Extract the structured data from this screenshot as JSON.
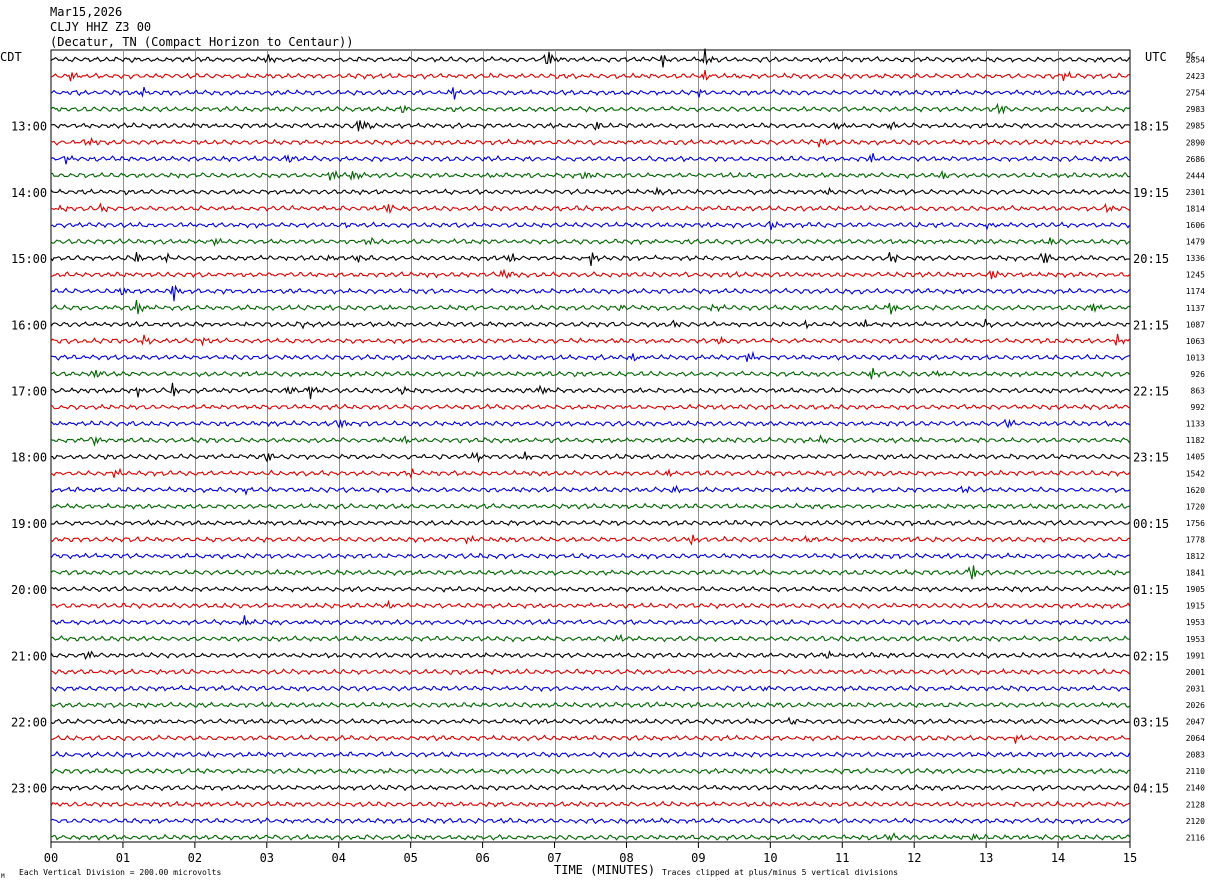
{
  "header": {
    "date": "Mar15,2026",
    "station": "CLJY HHZ Z3 00",
    "location": "(Decatur, TN (Compact Horizon to Centaur))"
  },
  "axis_labels": {
    "left_tz": "CDT",
    "right_tz": "UTC",
    "dc_label": "DC",
    "x_title": "TIME (MINUTES)"
  },
  "footer": {
    "scale_note": "Each Vertical Division =  200.00 microvolts",
    "clip_note": "Traces clipped at plus/minus 5 vertical divisions",
    "corner_mark": "M"
  },
  "colors": {
    "trace_cycle": [
      "#000000",
      "#dd0000",
      "#0000dd",
      "#006600"
    ],
    "grid": "#909090",
    "frame": "#000000"
  },
  "chart_data": {
    "type": "line",
    "title": "CLJY HHZ Z3 00",
    "xlabel": "TIME (MINUTES)",
    "ylabel": "",
    "x_range": [
      0,
      15
    ],
    "x_ticks": [
      "00",
      "01",
      "02",
      "03",
      "04",
      "05",
      "06",
      "07",
      "08",
      "09",
      "10",
      "11",
      "12",
      "13",
      "14",
      "15"
    ],
    "row_count": 48,
    "row_minutes": 15,
    "left_time_labels": [
      "13:00",
      "14:00",
      "15:00",
      "16:00",
      "17:00",
      "18:00",
      "19:00",
      "20:00",
      "21:00",
      "22:00",
      "23:00"
    ],
    "right_time_labels": [
      "18:15",
      "19:15",
      "20:15",
      "21:15",
      "22:15",
      "23:15",
      "00:15",
      "01:15",
      "02:15",
      "03:15",
      "04:15"
    ],
    "label_row_indices": [
      4,
      8,
      12,
      16,
      20,
      24,
      28,
      32,
      36,
      40,
      44
    ],
    "dc_offsets": [
      "2854",
      "2423",
      "2754",
      "2983",
      "2985",
      "2890",
      "2686",
      "2444",
      "2301",
      "1814",
      "1606",
      "1479",
      "1336",
      "1245",
      "1174",
      "1137",
      "1087",
      "1063",
      "1013",
      "926",
      "863",
      "992",
      "1133",
      "1182",
      "1405",
      "1542",
      "1620",
      "1720",
      "1756",
      "1778",
      "1812",
      "1841",
      "1905",
      "1915",
      "1953",
      "1953",
      "1991",
      "2001",
      "2031",
      "2026",
      "2047",
      "2064",
      "2083",
      "2110",
      "2140",
      "2128",
      "2120",
      "2116"
    ],
    "events": [
      {
        "row": 0,
        "minute": 3.0,
        "amp": 0.6
      },
      {
        "row": 0,
        "minute": 6.9,
        "amp": 1.2
      },
      {
        "row": 0,
        "minute": 8.5,
        "amp": 0.9
      },
      {
        "row": 0,
        "minute": 9.1,
        "amp": 1.0
      },
      {
        "row": 1,
        "minute": 0.3,
        "amp": 0.6
      },
      {
        "row": 1,
        "minute": 9.1,
        "amp": 0.7
      },
      {
        "row": 1,
        "minute": 14.1,
        "amp": 0.5
      },
      {
        "row": 2,
        "minute": 1.3,
        "amp": 0.5
      },
      {
        "row": 2,
        "minute": 5.6,
        "amp": 0.8
      },
      {
        "row": 2,
        "minute": 9.0,
        "amp": 0.4
      },
      {
        "row": 3,
        "minute": 4.9,
        "amp": 0.5
      },
      {
        "row": 3,
        "minute": 13.2,
        "amp": 0.6
      },
      {
        "row": 4,
        "minute": 4.3,
        "amp": 1.1
      },
      {
        "row": 4,
        "minute": 7.6,
        "amp": 0.5
      },
      {
        "row": 4,
        "minute": 10.9,
        "amp": 0.5
      },
      {
        "row": 4,
        "minute": 11.7,
        "amp": 0.5
      },
      {
        "row": 5,
        "minute": 0.5,
        "amp": 0.6
      },
      {
        "row": 5,
        "minute": 10.7,
        "amp": 0.6
      },
      {
        "row": 6,
        "minute": 0.2,
        "amp": 0.5
      },
      {
        "row": 6,
        "minute": 3.3,
        "amp": 0.5
      },
      {
        "row": 6,
        "minute": 11.4,
        "amp": 0.7
      },
      {
        "row": 7,
        "minute": 3.9,
        "amp": 0.8
      },
      {
        "row": 7,
        "minute": 4.2,
        "amp": 0.8
      },
      {
        "row": 7,
        "minute": 7.4,
        "amp": 0.5
      },
      {
        "row": 7,
        "minute": 12.4,
        "amp": 0.6
      },
      {
        "row": 8,
        "minute": 8.4,
        "amp": 0.4
      },
      {
        "row": 8,
        "minute": 10.8,
        "amp": 0.5
      },
      {
        "row": 9,
        "minute": 0.1,
        "amp": 0.5
      },
      {
        "row": 9,
        "minute": 0.7,
        "amp": 0.4
      },
      {
        "row": 9,
        "minute": 4.7,
        "amp": 0.6
      },
      {
        "row": 9,
        "minute": 14.7,
        "amp": 0.6
      },
      {
        "row": 10,
        "minute": 4.1,
        "amp": 0.4
      },
      {
        "row": 10,
        "minute": 10.0,
        "amp": 0.5
      },
      {
        "row": 10,
        "minute": 13.0,
        "amp": 0.4
      },
      {
        "row": 11,
        "minute": 2.3,
        "amp": 0.4
      },
      {
        "row": 11,
        "minute": 4.4,
        "amp": 0.4
      },
      {
        "row": 11,
        "minute": 13.9,
        "amp": 0.5
      },
      {
        "row": 12,
        "minute": 1.2,
        "amp": 0.8
      },
      {
        "row": 12,
        "minute": 1.6,
        "amp": 0.5
      },
      {
        "row": 12,
        "minute": 3.9,
        "amp": 0.5
      },
      {
        "row": 12,
        "minute": 4.3,
        "amp": 0.5
      },
      {
        "row": 12,
        "minute": 6.4,
        "amp": 0.7
      },
      {
        "row": 12,
        "minute": 7.5,
        "amp": 0.8
      },
      {
        "row": 12,
        "minute": 11.7,
        "amp": 0.7
      },
      {
        "row": 12,
        "minute": 13.8,
        "amp": 0.8
      },
      {
        "row": 13,
        "minute": 6.3,
        "amp": 0.6
      },
      {
        "row": 13,
        "minute": 13.1,
        "amp": 0.5
      },
      {
        "row": 14,
        "minute": 1.0,
        "amp": 0.6
      },
      {
        "row": 14,
        "minute": 1.7,
        "amp": 1.1
      },
      {
        "row": 15,
        "minute": 1.2,
        "amp": 1.0
      },
      {
        "row": 15,
        "minute": 7.9,
        "amp": 0.5
      },
      {
        "row": 15,
        "minute": 9.2,
        "amp": 0.5
      },
      {
        "row": 15,
        "minute": 11.7,
        "amp": 0.8
      },
      {
        "row": 15,
        "minute": 14.5,
        "amp": 0.6
      },
      {
        "row": 16,
        "minute": 3.5,
        "amp": 0.4
      },
      {
        "row": 16,
        "minute": 8.7,
        "amp": 0.4
      },
      {
        "row": 16,
        "minute": 10.5,
        "amp": 0.4
      },
      {
        "row": 16,
        "minute": 11.3,
        "amp": 0.5
      },
      {
        "row": 16,
        "minute": 13.0,
        "amp": 0.4
      },
      {
        "row": 17,
        "minute": 1.3,
        "amp": 0.5
      },
      {
        "row": 17,
        "minute": 2.1,
        "amp": 0.5
      },
      {
        "row": 17,
        "minute": 9.3,
        "amp": 0.5
      },
      {
        "row": 17,
        "minute": 14.8,
        "amp": 0.8
      },
      {
        "row": 18,
        "minute": 8.1,
        "amp": 0.5
      },
      {
        "row": 18,
        "minute": 9.7,
        "amp": 0.6
      },
      {
        "row": 19,
        "minute": 0.6,
        "amp": 0.5
      },
      {
        "row": 19,
        "minute": 11.4,
        "amp": 0.9
      },
      {
        "row": 19,
        "minute": 12.3,
        "amp": 0.5
      },
      {
        "row": 20,
        "minute": 1.2,
        "amp": 0.6
      },
      {
        "row": 20,
        "minute": 1.7,
        "amp": 0.8
      },
      {
        "row": 20,
        "minute": 3.3,
        "amp": 0.5
      },
      {
        "row": 20,
        "minute": 3.6,
        "amp": 1.0
      },
      {
        "row": 20,
        "minute": 4.9,
        "amp": 0.6
      },
      {
        "row": 20,
        "minute": 6.8,
        "amp": 0.6
      },
      {
        "row": 22,
        "minute": 4.0,
        "amp": 0.6
      },
      {
        "row": 22,
        "minute": 13.3,
        "amp": 0.6
      },
      {
        "row": 23,
        "minute": 0.6,
        "amp": 0.5
      },
      {
        "row": 23,
        "minute": 4.9,
        "amp": 0.6
      },
      {
        "row": 23,
        "minute": 10.7,
        "amp": 0.5
      },
      {
        "row": 24,
        "minute": 3.0,
        "amp": 0.6
      },
      {
        "row": 24,
        "minute": 5.9,
        "amp": 0.7
      },
      {
        "row": 24,
        "minute": 6.6,
        "amp": 0.4
      },
      {
        "row": 25,
        "minute": 0.9,
        "amp": 0.5
      },
      {
        "row": 25,
        "minute": 5.0,
        "amp": 0.5
      },
      {
        "row": 25,
        "minute": 8.6,
        "amp": 0.5
      },
      {
        "row": 26,
        "minute": 2.7,
        "amp": 0.4
      },
      {
        "row": 26,
        "minute": 8.7,
        "amp": 0.4
      },
      {
        "row": 26,
        "minute": 12.7,
        "amp": 0.5
      },
      {
        "row": 29,
        "minute": 5.8,
        "amp": 0.5
      },
      {
        "row": 29,
        "minute": 8.9,
        "amp": 0.5
      },
      {
        "row": 29,
        "minute": 10.5,
        "amp": 0.4
      },
      {
        "row": 31,
        "minute": 12.8,
        "amp": 1.2
      },
      {
        "row": 33,
        "minute": 4.7,
        "amp": 0.6
      },
      {
        "row": 34,
        "minute": 2.7,
        "amp": 0.8
      },
      {
        "row": 35,
        "minute": 7.9,
        "amp": 0.4
      },
      {
        "row": 36,
        "minute": 0.5,
        "amp": 0.5
      },
      {
        "row": 36,
        "minute": 10.8,
        "amp": 0.5
      },
      {
        "row": 38,
        "minute": 9.9,
        "amp": 0.4
      },
      {
        "row": 40,
        "minute": 10.3,
        "amp": 0.4
      },
      {
        "row": 41,
        "minute": 13.4,
        "amp": 0.5
      },
      {
        "row": 47,
        "minute": 11.7,
        "amp": 0.4
      },
      {
        "row": 47,
        "minute": 12.8,
        "amp": 0.4
      }
    ]
  }
}
